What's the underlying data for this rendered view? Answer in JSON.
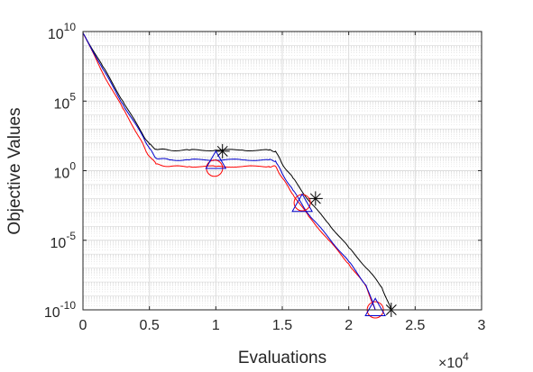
{
  "chart_data": {
    "type": "line",
    "title": "",
    "xlabel": "Evaluations",
    "ylabel": "Objective Values",
    "x_multiplier_label": {
      "base": "×10",
      "exponent": "4"
    },
    "xlim": [
      0,
      30000
    ],
    "ylim": [
      1e-10,
      10000000000.0
    ],
    "yscale": "log",
    "grid": true,
    "minor_grid": true,
    "x_ticks": [
      {
        "value": 0,
        "label": "0"
      },
      {
        "value": 5000,
        "label": "0.5"
      },
      {
        "value": 10000,
        "label": "1"
      },
      {
        "value": 15000,
        "label": "1.5"
      },
      {
        "value": 20000,
        "label": "2"
      },
      {
        "value": 25000,
        "label": "2.5"
      },
      {
        "value": 30000,
        "label": "3"
      }
    ],
    "y_ticks": [
      {
        "value": 1e-10,
        "base": "10",
        "exp": "-10"
      },
      {
        "value": 1e-05,
        "base": "10",
        "exp": "-5"
      },
      {
        "value": 1,
        "base": "10",
        "exp": "0"
      },
      {
        "value": 100000.0,
        "base": "10",
        "exp": "5"
      },
      {
        "value": 10000000000.0,
        "base": "10",
        "exp": "10"
      }
    ],
    "series": [
      {
        "color": "#000000",
        "marker": "asterisk",
        "x": [
          0,
          1500,
          3000,
          4500,
          5000,
          5500,
          6500,
          8000,
          10000,
          12000,
          14000,
          14500,
          15000,
          15800,
          17000,
          18500,
          20000,
          21500,
          22500,
          23200
        ],
        "y": [
          8000000000.0,
          30000000.0,
          100000.0,
          400,
          80,
          35,
          30,
          30,
          30,
          30,
          30,
          25,
          3,
          0.3,
          0.007,
          0.00015,
          3e-06,
          7e-08,
          4e-09,
          1e-10
        ],
        "markers": [
          {
            "x": 10500,
            "y": 25
          },
          {
            "x": 17500,
            "y": 0.01
          },
          {
            "x": 23200,
            "y": 1e-10
          }
        ]
      },
      {
        "color": "#ff0000",
        "marker": "circle",
        "x": [
          0,
          1500,
          3000,
          4300,
          4800,
          5500,
          6500,
          8000,
          10000,
          12000,
          14000,
          14500,
          15000,
          15800,
          17000,
          18500,
          20000,
          21300,
          22000
        ],
        "y": [
          8000000000.0,
          10000000.0,
          30000.0,
          200,
          20,
          3,
          2,
          2,
          2,
          2,
          2,
          2,
          0.3,
          0.02,
          0.0005,
          1e-05,
          2e-07,
          5e-09,
          1e-10
        ],
        "markers": [
          {
            "x": 9900,
            "y": 1.5
          },
          {
            "x": 16500,
            "y": 0.005
          },
          {
            "x": 22000,
            "y": 1e-10
          }
        ]
      },
      {
        "color": "#0000cc",
        "marker": "triangle",
        "x": [
          0,
          1500,
          3000,
          4500,
          5000,
          5500,
          6500,
          8000,
          10000,
          12000,
          14000,
          14500,
          15000,
          15800,
          17000,
          18500,
          20000,
          21300,
          22000
        ],
        "y": [
          8000000000.0,
          20000000.0,
          60000.0,
          300,
          40,
          8,
          6,
          6,
          6,
          6,
          6,
          5,
          0.6,
          0.04,
          0.0007,
          1.5e-05,
          3e-07,
          6e-09,
          1e-10
        ],
        "markers": [
          {
            "x": 10000,
            "y": 5
          },
          {
            "x": 16500,
            "y": 0.004
          },
          {
            "x": 22000,
            "y": 1.3e-10
          }
        ]
      }
    ]
  }
}
